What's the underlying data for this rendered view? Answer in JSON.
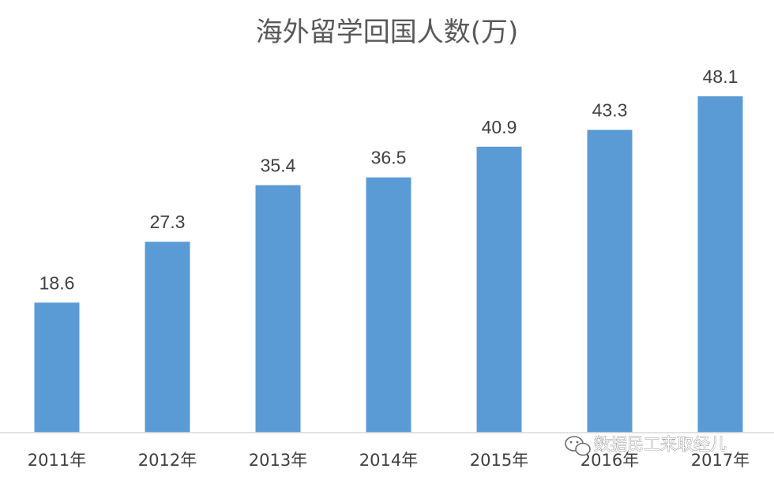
{
  "chart_data": {
    "type": "bar",
    "title": "海外留学回国人数(万)",
    "categories": [
      "2011年",
      "2012年",
      "2013年",
      "2014年",
      "2015年",
      "2016年",
      "2017年"
    ],
    "values": [
      18.6,
      27.3,
      35.4,
      36.5,
      40.9,
      43.3,
      48.1
    ],
    "ylim": [
      0,
      48.1
    ],
    "grid": false,
    "bar_color": "#5B9BD5",
    "data_labels": true
  },
  "watermark": {
    "text": "数据民工来取经儿",
    "icon": "wechat-icon"
  }
}
